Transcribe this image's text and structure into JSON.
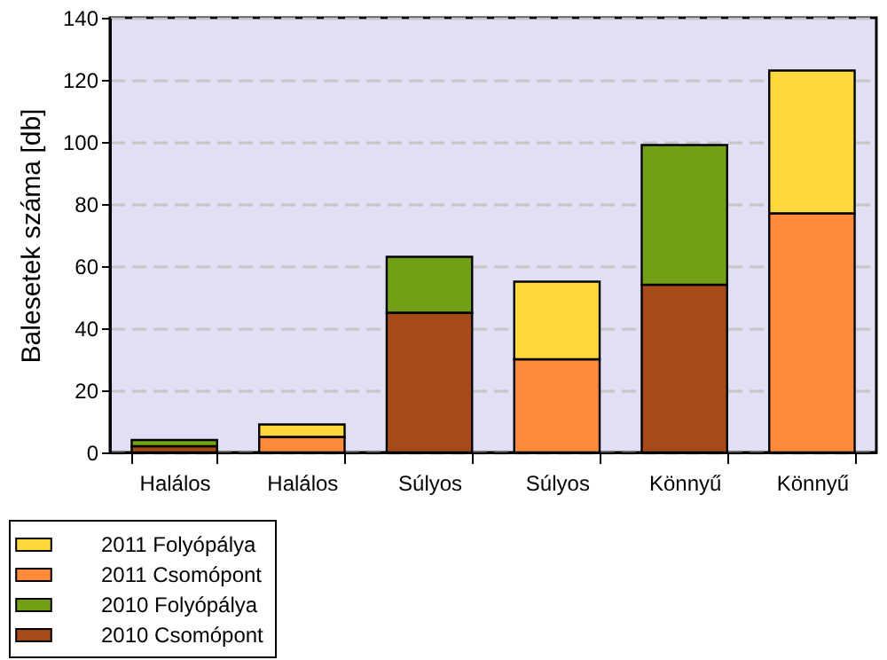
{
  "chart_data": {
    "type": "bar",
    "stacked": true,
    "ylabel": "Balesetek száma [db]",
    "categories": [
      "Halálos",
      "Halálos",
      "Súlyos",
      "Súlyos",
      "Könnyű",
      "Könnyű"
    ],
    "series": [
      {
        "name": "2010 Csomópont",
        "color": "#a64b17",
        "values": [
          2,
          null,
          45,
          null,
          54,
          null
        ]
      },
      {
        "name": "2010 Folyópálya",
        "color": "#739f16",
        "values": [
          2,
          null,
          18,
          null,
          45,
          null
        ]
      },
      {
        "name": "2011 Csomópont",
        "color": "#ff8a3c",
        "values": [
          null,
          5,
          null,
          30,
          null,
          77
        ]
      },
      {
        "name": "2011 Folyópálya",
        "color": "#ffd83c",
        "values": [
          null,
          4,
          null,
          25,
          null,
          46
        ]
      }
    ],
    "ylim": [
      0,
      140
    ],
    "yticks": [
      0,
      20,
      40,
      60,
      80,
      100,
      120,
      140
    ],
    "grid": "y",
    "legend": "bottom left"
  }
}
